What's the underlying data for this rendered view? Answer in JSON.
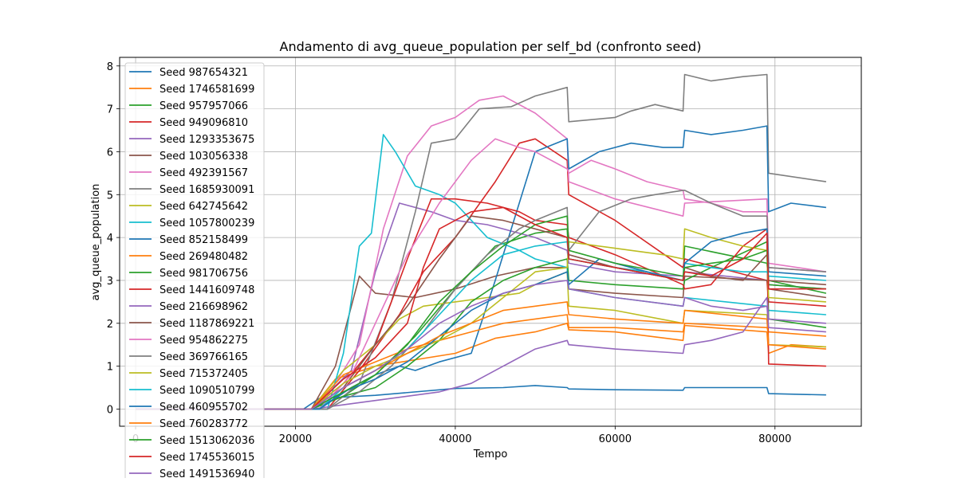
{
  "chart_data": {
    "type": "line",
    "title": "Andamento di avg_queue_population per self_bd (confronto seed)",
    "xlabel": "Tempo",
    "ylabel": "avg_queue_population",
    "xlim": [
      -2000,
      90800
    ],
    "ylim": [
      -0.4,
      8.2
    ],
    "xticks": [
      0,
      20000,
      40000,
      60000,
      80000
    ],
    "xtick_labels": [
      "0",
      "20000",
      "40000",
      "60000",
      "80000"
    ],
    "yticks": [
      0,
      1,
      2,
      3,
      4,
      5,
      6,
      7,
      8
    ],
    "ytick_labels": [
      "0",
      "1",
      "2",
      "3",
      "4",
      "5",
      "6",
      "7",
      "8"
    ],
    "grid": true,
    "legend_position": "top-left",
    "series": [
      {
        "name": "Seed 987654321",
        "color": "#1f77b4",
        "x": [
          0,
          21000,
          23000,
          30000,
          40000,
          46000,
          50000,
          54000,
          54200,
          60000,
          68500,
          68700,
          79000,
          79200,
          86400
        ],
        "y": [
          0,
          0,
          0.25,
          0.32,
          0.48,
          0.5,
          0.55,
          0.5,
          0.47,
          0.45,
          0.44,
          0.5,
          0.5,
          0.36,
          0.33
        ]
      },
      {
        "name": "Seed 1746581699",
        "color": "#ff7f0e",
        "x": [
          0,
          22000,
          25000,
          30000,
          40000,
          45000,
          50000,
          54000,
          54200,
          60000,
          68500,
          68700,
          79000,
          79200,
          82000,
          86400
        ],
        "y": [
          0,
          0,
          0.7,
          1.0,
          1.3,
          1.65,
          1.8,
          2.0,
          1.85,
          1.8,
          1.6,
          1.95,
          1.8,
          1.3,
          1.5,
          1.45
        ]
      },
      {
        "name": "Seed 957957066",
        "color": "#2ca02c",
        "x": [
          0,
          22000,
          26000,
          30000,
          35000,
          40000,
          45000,
          50000,
          54000,
          54200,
          60000,
          68500,
          68700,
          79000,
          79200,
          86400
        ],
        "y": [
          0,
          0,
          0.3,
          0.8,
          1.7,
          2.8,
          3.8,
          4.1,
          4.2,
          3.5,
          3.3,
          3.0,
          3.8,
          3.4,
          3.0,
          2.7
        ]
      },
      {
        "name": "Seed 949096810",
        "color": "#d62728",
        "x": [
          0,
          24000,
          28000,
          33000,
          36000,
          40000,
          45000,
          48000,
          50000,
          54000,
          54200,
          60000,
          68500,
          68700,
          79000,
          79200,
          86400
        ],
        "y": [
          0,
          0,
          0.9,
          2.2,
          3.2,
          4.0,
          5.3,
          6.2,
          6.3,
          5.8,
          5.0,
          4.4,
          3.3,
          3.5,
          3.0,
          2.5,
          2.4
        ]
      },
      {
        "name": "Seed 1293353675",
        "color": "#9467bd",
        "x": [
          0,
          22000,
          27000,
          30000,
          33000,
          37000,
          40000,
          44000,
          50000,
          54000,
          54200,
          60000,
          68500,
          68700,
          79000,
          79200,
          86400
        ],
        "y": [
          0,
          0,
          0.9,
          3.2,
          4.8,
          4.6,
          4.4,
          4.3,
          4.0,
          3.7,
          3.4,
          3.2,
          3.1,
          3.2,
          3.0,
          2.9,
          2.8
        ]
      },
      {
        "name": "Seed 103056338",
        "color": "#8c564b",
        "x": [
          0,
          22000,
          25000,
          28000,
          30000,
          35000,
          40000,
          45000,
          50000,
          54000,
          54200,
          60000,
          68500,
          68700,
          79000,
          79200,
          86400
        ],
        "y": [
          0,
          0,
          1.0,
          3.1,
          2.7,
          2.6,
          2.8,
          3.1,
          3.3,
          3.3,
          2.8,
          2.7,
          2.6,
          3.1,
          3.0,
          2.8,
          2.6
        ]
      },
      {
        "name": "Seed 492391567",
        "color": "#e377c2",
        "x": [
          0,
          23000,
          28000,
          31000,
          34000,
          37000,
          40000,
          43000,
          46000,
          50000,
          54000,
          54200,
          60000,
          68500,
          68700,
          79000,
          79200,
          86400
        ],
        "y": [
          0,
          0,
          1.5,
          4.2,
          5.9,
          6.6,
          6.8,
          7.2,
          7.3,
          6.9,
          6.3,
          5.3,
          4.9,
          4.5,
          4.8,
          4.9,
          3.4,
          3.2
        ]
      },
      {
        "name": "Seed 1685930091",
        "color": "#7f7f7f",
        "x": [
          0,
          24000,
          28000,
          32000,
          35000,
          37000,
          40000,
          43000,
          47000,
          50000,
          54000,
          54200,
          60000,
          62000,
          65000,
          68500,
          68700,
          72000,
          76000,
          79000,
          79200,
          86400
        ],
        "y": [
          0,
          0,
          0.6,
          2.5,
          4.6,
          6.2,
          6.3,
          7.0,
          7.05,
          7.3,
          7.5,
          6.7,
          6.8,
          6.95,
          7.1,
          6.95,
          7.8,
          7.65,
          7.75,
          7.8,
          5.5,
          5.3
        ]
      },
      {
        "name": "Seed 642745642",
        "color": "#bcbd22",
        "x": [
          0,
          22000,
          26000,
          30000,
          33000,
          36000,
          40000,
          44000,
          48000,
          50000,
          54000,
          54200,
          60000,
          68500,
          68700,
          79000,
          79200,
          86400
        ],
        "y": [
          0,
          0,
          0.9,
          1.5,
          2.1,
          2.4,
          2.5,
          2.6,
          2.7,
          2.9,
          3.2,
          2.4,
          2.3,
          2.0,
          2.3,
          2.2,
          1.5,
          1.45
        ]
      },
      {
        "name": "Seed 1057800239",
        "color": "#17becf",
        "x": [
          0,
          24000,
          26000,
          28000,
          29500,
          31000,
          32500,
          35000,
          38000,
          40000,
          44000,
          48000,
          50000,
          54000,
          54200,
          60000,
          68500,
          68700,
          79000,
          79200,
          86400
        ],
        "y": [
          0,
          0,
          1.3,
          3.8,
          4.1,
          6.4,
          6.0,
          5.2,
          5.0,
          4.8,
          4.0,
          3.7,
          3.5,
          3.3,
          2.8,
          2.6,
          2.4,
          2.6,
          2.4,
          2.3,
          2.2
        ]
      },
      {
        "name": "Seed 852158499",
        "color": "#1f77b4",
        "x": [
          0,
          23000,
          27000,
          30000,
          33000,
          35000,
          38000,
          42000,
          45000,
          48000,
          50000,
          54000,
          54200,
          58000,
          62000,
          66000,
          68500,
          68700,
          72000,
          76000,
          79000,
          79200,
          82000,
          86400
        ],
        "y": [
          0,
          0,
          0.5,
          0.8,
          1.0,
          0.9,
          1.1,
          1.3,
          3.0,
          4.8,
          6.0,
          6.3,
          5.6,
          6.0,
          6.2,
          6.1,
          6.1,
          6.5,
          6.4,
          6.5,
          6.6,
          4.6,
          4.8,
          4.7
        ]
      },
      {
        "name": "Seed 269480482",
        "color": "#ff7f0e",
        "x": [
          0,
          22000,
          26000,
          30000,
          34000,
          38000,
          42000,
          46000,
          50000,
          54000,
          54200,
          60000,
          68500,
          68700,
          79000,
          79200,
          86400
        ],
        "y": [
          0,
          0,
          0.8,
          1.1,
          1.4,
          1.6,
          1.8,
          2.0,
          2.1,
          2.2,
          1.9,
          1.9,
          1.8,
          2.0,
          1.9,
          1.8,
          1.7
        ]
      },
      {
        "name": "Seed 981706756",
        "color": "#2ca02c",
        "x": [
          0,
          22000,
          26000,
          30000,
          34000,
          38000,
          42000,
          46000,
          50000,
          54000,
          54200,
          60000,
          68500,
          68700,
          72000,
          79000,
          79200,
          86400
        ],
        "y": [
          0,
          0,
          0.3,
          0.5,
          1.0,
          1.6,
          2.5,
          3.0,
          3.3,
          3.5,
          3.0,
          2.9,
          2.8,
          3.0,
          3.3,
          3.9,
          2.1,
          1.9
        ]
      },
      {
        "name": "Seed 1441609748",
        "color": "#d62728",
        "x": [
          0,
          22000,
          26000,
          30000,
          34000,
          37000,
          40000,
          44000,
          48000,
          50000,
          54000,
          54200,
          60000,
          68500,
          68700,
          72000,
          76000,
          79000,
          79200,
          86400
        ],
        "y": [
          0,
          0,
          0.6,
          1.5,
          3.5,
          4.9,
          4.9,
          4.8,
          4.6,
          4.4,
          4.3,
          4.0,
          3.6,
          2.9,
          2.8,
          2.9,
          3.8,
          4.2,
          1.05,
          1.0
        ]
      },
      {
        "name": "Seed 216698962",
        "color": "#9467bd",
        "x": [
          0,
          22000,
          26000,
          30000,
          34000,
          38000,
          42000,
          46000,
          50000,
          54000,
          54200,
          60000,
          68500,
          68700,
          72000,
          76000,
          79000,
          79200,
          86400
        ],
        "y": [
          0,
          0,
          0.1,
          0.2,
          0.3,
          0.4,
          0.6,
          1.0,
          1.4,
          1.6,
          1.5,
          1.4,
          1.3,
          1.5,
          1.6,
          1.8,
          2.6,
          2.1,
          2.0
        ]
      },
      {
        "name": "Seed 1187869221",
        "color": "#8c564b",
        "x": [
          0,
          22000,
          26000,
          30000,
          34000,
          38000,
          42000,
          46000,
          50000,
          54000,
          54200,
          60000,
          68500,
          68700,
          72000,
          76000,
          79000,
          79200,
          86400
        ],
        "y": [
          0,
          0,
          0.5,
          1.5,
          2.4,
          3.5,
          4.5,
          4.4,
          4.2,
          4.0,
          3.6,
          3.3,
          3.0,
          3.3,
          3.1,
          3.0,
          3.6,
          3.0,
          2.9
        ]
      },
      {
        "name": "Seed 954862275",
        "color": "#e377c2",
        "x": [
          0,
          23000,
          27000,
          30000,
          34000,
          38000,
          42000,
          45000,
          48000,
          50000,
          54000,
          54200,
          57000,
          60000,
          64000,
          68500,
          68700,
          72000,
          76000,
          79000,
          79200,
          86400
        ],
        "y": [
          0,
          0,
          0.8,
          2.0,
          3.6,
          4.8,
          5.8,
          6.3,
          6.1,
          6.0,
          5.6,
          5.5,
          5.8,
          5.6,
          5.3,
          5.1,
          4.9,
          4.8,
          4.6,
          4.6,
          3.3,
          3.2
        ]
      },
      {
        "name": "Seed 369766165",
        "color": "#7f7f7f",
        "x": [
          0,
          24000,
          28000,
          32000,
          36000,
          40000,
          44000,
          48000,
          50000,
          54000,
          54200,
          58000,
          62000,
          65000,
          68500,
          68700,
          72000,
          76000,
          79000,
          79200,
          86400
        ],
        "y": [
          0,
          0,
          0.4,
          1.0,
          1.8,
          2.8,
          3.6,
          4.2,
          4.4,
          4.7,
          3.7,
          4.6,
          4.9,
          5.0,
          5.1,
          5.1,
          4.8,
          4.5,
          4.5,
          3.3,
          3.2
        ]
      },
      {
        "name": "Seed 715372405",
        "color": "#bcbd22",
        "x": [
          0,
          22000,
          26000,
          30000,
          34000,
          38000,
          42000,
          46000,
          50000,
          54000,
          54200,
          58000,
          62000,
          66000,
          68500,
          68700,
          72000,
          76000,
          79000,
          79200,
          86400
        ],
        "y": [
          0,
          0,
          0.6,
          1.0,
          1.3,
          1.6,
          2.0,
          2.6,
          3.2,
          3.3,
          3.9,
          3.8,
          3.7,
          3.6,
          3.5,
          4.2,
          4.0,
          3.8,
          3.7,
          2.6,
          2.5
        ]
      },
      {
        "name": "Seed 1090510799",
        "color": "#17becf",
        "x": [
          0,
          23000,
          26000,
          30000,
          34000,
          38000,
          42000,
          46000,
          50000,
          54000,
          54200,
          60000,
          64000,
          68500,
          68700,
          72000,
          76000,
          79000,
          79200,
          86400
        ],
        "y": [
          0,
          0,
          0.5,
          0.9,
          1.4,
          2.2,
          3.0,
          3.6,
          3.8,
          3.9,
          3.5,
          3.3,
          3.2,
          3.0,
          3.4,
          3.3,
          3.2,
          3.2,
          3.1,
          3.0
        ]
      },
      {
        "name": "Seed 460955702",
        "color": "#1f77b4",
        "x": [
          0,
          23000,
          26000,
          30000,
          34000,
          38000,
          42000,
          46000,
          50000,
          54000,
          54200,
          58000,
          62000,
          66000,
          68500,
          68700,
          72000,
          76000,
          79000,
          79200,
          86400
        ],
        "y": [
          0,
          0,
          0.4,
          0.7,
          1.1,
          1.7,
          2.3,
          2.7,
          2.9,
          3.2,
          2.9,
          3.5,
          3.3,
          3.1,
          3.0,
          3.4,
          3.9,
          4.1,
          4.2,
          3.2,
          3.1
        ]
      },
      {
        "name": "Seed 760283772",
        "color": "#ff7f0e",
        "x": [
          0,
          22000,
          26000,
          30000,
          34000,
          38000,
          42000,
          46000,
          50000,
          54000,
          54200,
          60000,
          68500,
          68700,
          79000,
          79200,
          86400
        ],
        "y": [
          0,
          0,
          0.5,
          0.9,
          1.3,
          1.7,
          2.0,
          2.3,
          2.4,
          2.5,
          2.2,
          2.1,
          2.0,
          2.3,
          2.1,
          1.5,
          1.4
        ]
      },
      {
        "name": "Seed 1513062036",
        "color": "#2ca02c",
        "x": [
          0,
          22000,
          26000,
          30000,
          34000,
          38000,
          42000,
          46000,
          50000,
          54000,
          54200,
          60000,
          68500,
          68700,
          72000,
          76000,
          79000,
          79200,
          86400
        ],
        "y": [
          0,
          0,
          0.4,
          0.8,
          1.5,
          2.5,
          3.2,
          3.8,
          4.3,
          4.5,
          3.7,
          3.4,
          3.1,
          3.3,
          3.4,
          3.5,
          3.7,
          2.9,
          2.8
        ]
      },
      {
        "name": "Seed 1745536015",
        "color": "#d62728",
        "x": [
          0,
          22000,
          26000,
          30000,
          34000,
          36000,
          38000,
          42000,
          46000,
          50000,
          54000,
          54200,
          60000,
          68500,
          68700,
          72000,
          76000,
          79000,
          79200,
          86400
        ],
        "y": [
          0,
          0,
          0.7,
          1.2,
          2.0,
          3.3,
          4.2,
          4.6,
          4.7,
          4.3,
          4.0,
          3.5,
          3.3,
          3.0,
          3.2,
          3.1,
          3.5,
          4.1,
          2.8,
          2.8
        ]
      },
      {
        "name": "Seed 1491536940",
        "color": "#9467bd",
        "x": [
          0,
          22000,
          26000,
          30000,
          34000,
          38000,
          42000,
          46000,
          50000,
          54000,
          54200,
          60000,
          68500,
          68700,
          72000,
          76000,
          79000,
          79200,
          86400
        ],
        "y": [
          0,
          0,
          0.5,
          0.9,
          1.4,
          2.0,
          2.4,
          2.7,
          2.9,
          3.0,
          2.8,
          2.6,
          2.4,
          2.6,
          2.4,
          2.3,
          2.4,
          1.9,
          1.8
        ]
      }
    ]
  }
}
